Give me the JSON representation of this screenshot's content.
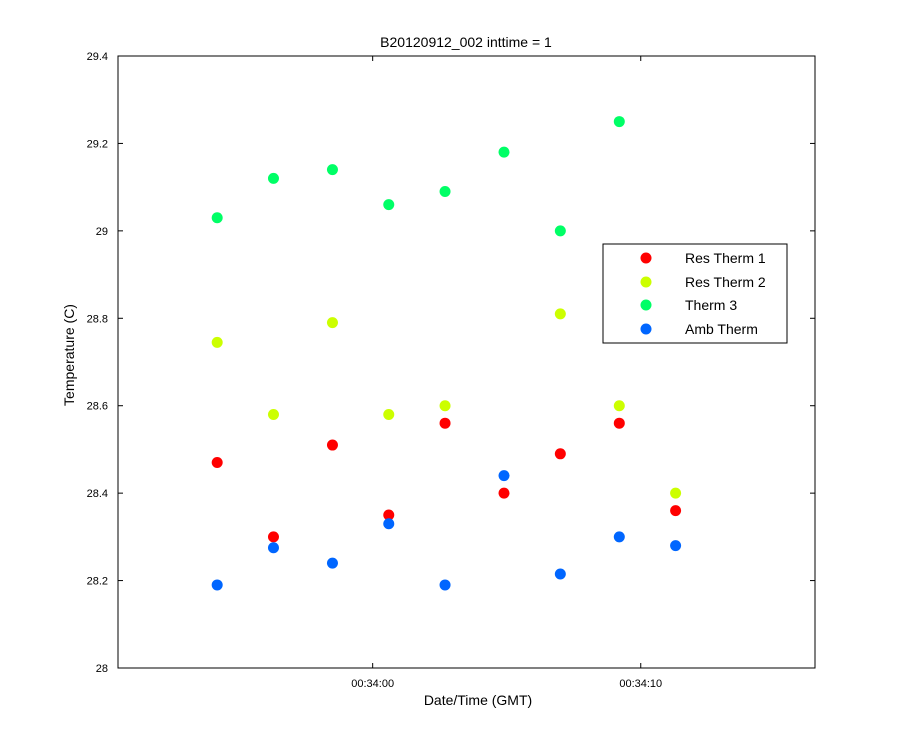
{
  "chart_data": {
    "type": "scatter",
    "title": "B20120912_002 inttime = 1",
    "xlabel": "Date/Time (GMT)",
    "ylabel": "Temperature (C)",
    "xlim": [
      "00:33:50.5",
      "00:34:16.5"
    ],
    "ylim": [
      28,
      29.4
    ],
    "x_ticks": [
      "00:34:00",
      "00:34:10"
    ],
    "y_ticks": [
      "28",
      "28.2",
      "28.4",
      "28.6",
      "28.8",
      "29",
      "29.2",
      "29.4"
    ],
    "grid": false,
    "legend_position": "right",
    "x": [
      "00:33:54.2",
      "00:33:56.3",
      "00:33:58.5",
      "00:34:00.6",
      "00:34:02.7",
      "00:34:04.9",
      "00:34:07.0",
      "00:34:09.2",
      "00:34:11.3"
    ],
    "series": [
      {
        "name": "Res Therm 1",
        "color": "#ff0000",
        "values": [
          28.47,
          28.3,
          28.51,
          28.35,
          28.56,
          28.4,
          28.49,
          28.56,
          28.36
        ]
      },
      {
        "name": "Res Therm 2",
        "color": "#ccff00",
        "values": [
          28.745,
          28.58,
          28.79,
          28.58,
          28.6,
          null,
          28.81,
          28.6,
          28.4
        ]
      },
      {
        "name": "Therm 3",
        "color": "#00ff66",
        "values": [
          29.03,
          29.12,
          29.14,
          29.06,
          29.09,
          29.18,
          29.0,
          29.25,
          null
        ]
      },
      {
        "name": "Amb Therm",
        "color": "#0066ff",
        "values": [
          28.19,
          28.275,
          28.24,
          28.33,
          28.19,
          28.44,
          28.215,
          28.3,
          28.28
        ]
      }
    ]
  }
}
